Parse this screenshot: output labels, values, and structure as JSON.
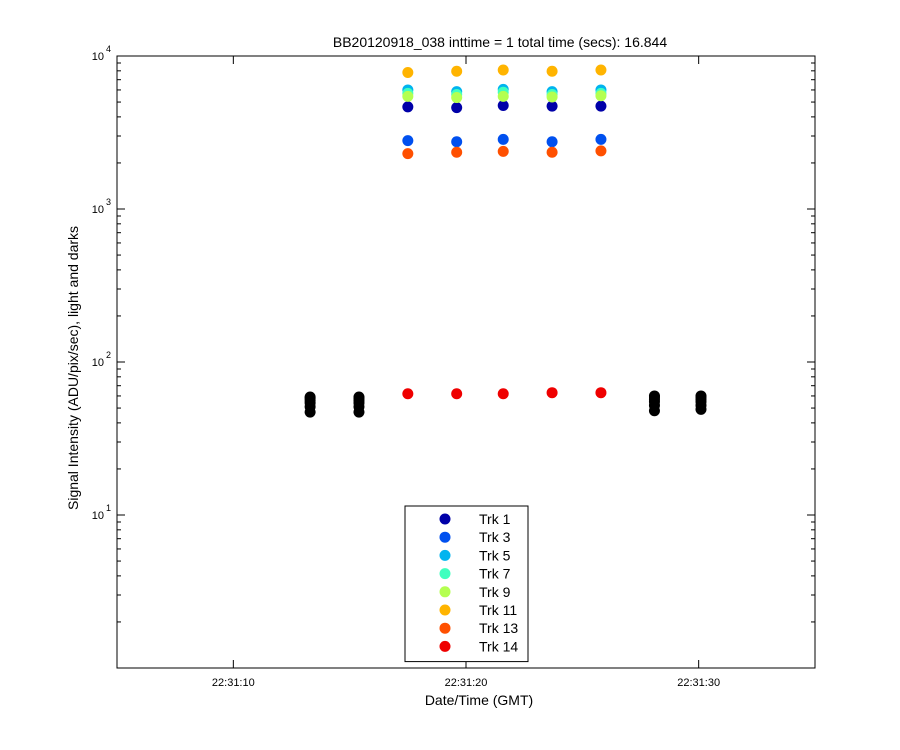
{
  "chart_data": {
    "type": "scatter",
    "title": "BB20120918_038 inttime = 1 total time (secs): 16.844",
    "xlabel": "Date/Time (GMT)",
    "ylabel": "Signal Intensity (ADU/pix/sec), light and darks",
    "yscale": "log",
    "ylim": [
      1,
      10000
    ],
    "xlim": [
      "22:31:05",
      "22:31:35"
    ],
    "xticks": [
      "22:31:10",
      "22:31:20",
      "22:31:30"
    ],
    "yticks": [
      1,
      10,
      100,
      1000,
      10000
    ],
    "ytick_labels": [
      {
        "base": "10",
        "exp": "1"
      },
      {
        "base": "10",
        "exp": "2"
      },
      {
        "base": "10",
        "exp": "3"
      },
      {
        "base": "10",
        "exp": "4"
      }
    ],
    "legend_position": "bottom-center",
    "grid": false,
    "light_x": [
      "22:31:17.5",
      "22:31:19.6",
      "22:31:21.6",
      "22:31:23.7",
      "22:31:25.8"
    ],
    "dark_x": [
      "22:31:13.3",
      "22:31:15.4",
      "22:31:28.1",
      "22:31:30.1"
    ],
    "series": [
      {
        "name": "Trk 1",
        "color": "#0000a8",
        "values": [
          4650,
          4600,
          4750,
          4700,
          4700
        ]
      },
      {
        "name": "Trk 3",
        "color": "#0050ef",
        "values": [
          2800,
          2750,
          2850,
          2750,
          2850
        ]
      },
      {
        "name": "Trk 5",
        "color": "#00b4ef",
        "values": [
          6000,
          5850,
          6050,
          5850,
          6000
        ]
      },
      {
        "name": "Trk 7",
        "color": "#40ffbf",
        "values": [
          5700,
          5600,
          5800,
          5600,
          5700
        ]
      },
      {
        "name": "Trk 9",
        "color": "#b4ff50",
        "values": [
          5450,
          5350,
          5450,
          5400,
          5500
        ]
      },
      {
        "name": "Trk 11",
        "color": "#ffb400",
        "values": [
          7800,
          7950,
          8100,
          7950,
          8100
        ]
      },
      {
        "name": "Trk 13",
        "color": "#ff5000",
        "values": [
          2300,
          2350,
          2380,
          2350,
          2400
        ]
      },
      {
        "name": "Trk 14",
        "color": "#ef0000",
        "values": [
          62,
          62,
          62,
          63,
          63
        ]
      }
    ],
    "darks": {
      "color": "#000000",
      "groups": [
        [
          47,
          51,
          54,
          56,
          58,
          59
        ],
        [
          47,
          51,
          54,
          56,
          58,
          59
        ],
        [
          48,
          52,
          55,
          57,
          59,
          60
        ],
        [
          49,
          52,
          55,
          57,
          59,
          60
        ]
      ]
    }
  }
}
